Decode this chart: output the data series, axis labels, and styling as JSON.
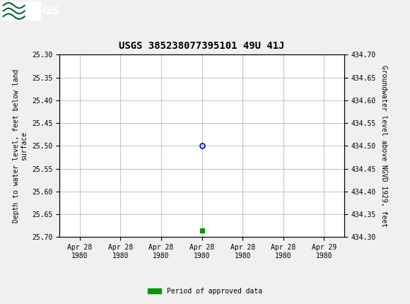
{
  "title": "USGS 385238077395101 49U 41J",
  "ylabel_left": "Depth to water level, feet below land\nsurface",
  "ylabel_right": "Groundwater level above NGVD 1929, feet",
  "ylim_left": [
    25.7,
    25.3
  ],
  "ylim_right": [
    434.3,
    434.7
  ],
  "yticks_left": [
    25.3,
    25.35,
    25.4,
    25.45,
    25.5,
    25.55,
    25.6,
    25.65,
    25.7
  ],
  "yticks_right": [
    434.7,
    434.65,
    434.6,
    434.55,
    434.5,
    434.45,
    434.4,
    434.35,
    434.3
  ],
  "data_x": [
    3
  ],
  "data_y_depth": [
    25.5
  ],
  "marker_color": "#0000cc",
  "marker_size": 5,
  "green_marker_x": [
    3
  ],
  "green_marker_y": [
    25.685
  ],
  "green_color": "#009900",
  "green_marker_size": 4,
  "header_bg_color": "#006633",
  "header_text_color": "#ffffff",
  "background_color": "#f0f0f0",
  "plot_bg_color": "#ffffff",
  "grid_color": "#aaaaaa",
  "title_fontsize": 10,
  "axis_label_fontsize": 7,
  "tick_fontsize": 7,
  "legend_label": "Period of approved data",
  "xtick_positions": [
    0,
    1,
    2,
    3,
    4,
    5,
    6
  ],
  "xtick_labels": [
    "Apr 28\n1980",
    "Apr 28\n1980",
    "Apr 28\n1980",
    "Apr 28\n1980",
    "Apr 28\n1980",
    "Apr 28\n1980",
    "Apr 29\n1980"
  ],
  "xlim": [
    -0.5,
    6.5
  ]
}
